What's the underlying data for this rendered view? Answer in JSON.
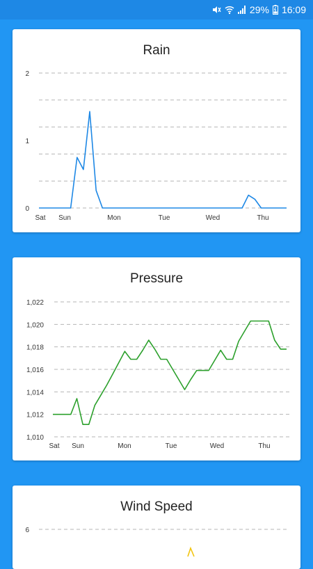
{
  "status_bar": {
    "battery_percent": "29%",
    "time": "16:09",
    "icons": [
      "mute-icon",
      "wifi-icon",
      "signal-icon",
      "battery-icon"
    ]
  },
  "cards": [
    {
      "title": "Rain",
      "chart_data": {
        "type": "line",
        "title": "Rain",
        "color": "#1e88e5",
        "y_ticks": [
          "0",
          "1",
          "2"
        ],
        "ylim": [
          0,
          2
        ],
        "x_ticks": [
          "Sat",
          "Sun",
          "Mon",
          "Tue",
          "Wed",
          "Thu"
        ],
        "grid": true,
        "x": [
          0,
          1,
          2,
          3,
          4,
          5,
          6,
          7,
          8,
          9,
          10,
          11,
          12,
          13,
          14,
          15,
          16,
          17,
          18,
          19,
          20,
          21,
          22,
          23,
          24,
          25,
          26,
          27,
          28,
          29,
          30,
          31,
          32,
          33,
          34,
          35,
          36,
          37,
          38,
          39
        ],
        "values": [
          0,
          0,
          0,
          0,
          0,
          0,
          0.75,
          0.57,
          1.43,
          0.26,
          0,
          0,
          0,
          0,
          0,
          0,
          0,
          0,
          0,
          0,
          0,
          0,
          0,
          0,
          0,
          0,
          0,
          0,
          0,
          0,
          0,
          0,
          0,
          0.19,
          0.13,
          0,
          0,
          0,
          0,
          0
        ]
      }
    },
    {
      "title": "Pressure",
      "chart_data": {
        "type": "line",
        "title": "Pressure",
        "color": "#2ca02c",
        "y_ticks": [
          "1,010",
          "1,012",
          "1,014",
          "1,016",
          "1,018",
          "1,020",
          "1,022"
        ],
        "ylim": [
          1010,
          1022
        ],
        "x_ticks": [
          "Sat",
          "Sun",
          "Mon",
          "Tue",
          "Wed",
          "Thu"
        ],
        "grid": true,
        "x": [
          0,
          1,
          2,
          3,
          4,
          5,
          6,
          7,
          8,
          9,
          10,
          11,
          12,
          13,
          14,
          15,
          16,
          17,
          18,
          19,
          20,
          21,
          22,
          23,
          24,
          25,
          26,
          27,
          28,
          29,
          30,
          31,
          32,
          33,
          34,
          35,
          36,
          37,
          38,
          39
        ],
        "values": [
          1012,
          1012,
          1012,
          1012,
          1013.4,
          1011.1,
          1011.1,
          1012.8,
          1013.7,
          1014.6,
          1015.6,
          1016.6,
          1017.6,
          1016.9,
          1016.9,
          1017.7,
          1018.6,
          1017.8,
          1016.9,
          1016.9,
          1016,
          1015.1,
          1014.2,
          1015.1,
          1015.9,
          1015.9,
          1015.9,
          1016.8,
          1017.7,
          1016.9,
          1016.9,
          1018.5,
          1019.4,
          1020.3,
          1020.3,
          1020.3,
          1020.3,
          1018.6,
          1017.8,
          1017.8
        ]
      }
    },
    {
      "title": "Wind Speed",
      "chart_data": {
        "type": "line",
        "title": "Wind Speed",
        "color": "#f2c40f",
        "y_ticks": [
          "6"
        ],
        "grid": true
      }
    }
  ]
}
